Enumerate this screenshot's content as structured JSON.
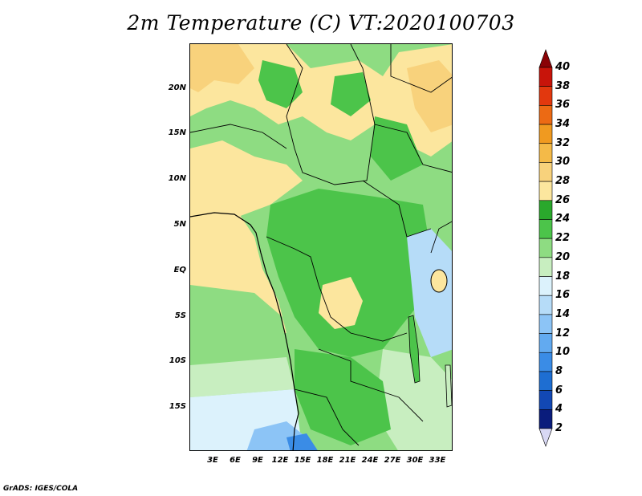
{
  "title": "2m Temperature (C) VT:2020100703",
  "credit": "GrADS: IGES/COLA",
  "map": {
    "lat_labels": [
      "20N",
      "15N",
      "10N",
      "5N",
      "EQ",
      "5S",
      "10S",
      "15S"
    ],
    "lon_labels": [
      "3E",
      "6E",
      "9E",
      "12E",
      "15E",
      "18E",
      "21E",
      "24E",
      "27E",
      "30E",
      "33E"
    ]
  },
  "colorbar": {
    "levels": [
      "2",
      "4",
      "6",
      "8",
      "10",
      "12",
      "14",
      "16",
      "18",
      "20",
      "22",
      "24",
      "26",
      "28",
      "30",
      "32",
      "34",
      "36",
      "38",
      "40"
    ],
    "colors": [
      "#0a1c7c",
      "#1248b4",
      "#1e6ed2",
      "#3a8ce6",
      "#62aaf0",
      "#8cc4f6",
      "#b6dcf8",
      "#dcf2fc",
      "#c8eec0",
      "#8edc82",
      "#4cc44a",
      "#2aa82c",
      "#fce69e",
      "#f8d27c",
      "#f4ba48",
      "#f09a20",
      "#ec6a14",
      "#e2380e",
      "#c8140a",
      "#a80206"
    ],
    "lower_arrow_color": "#d8d8f4",
    "upper_arrow_color": "#8a0206"
  }
}
